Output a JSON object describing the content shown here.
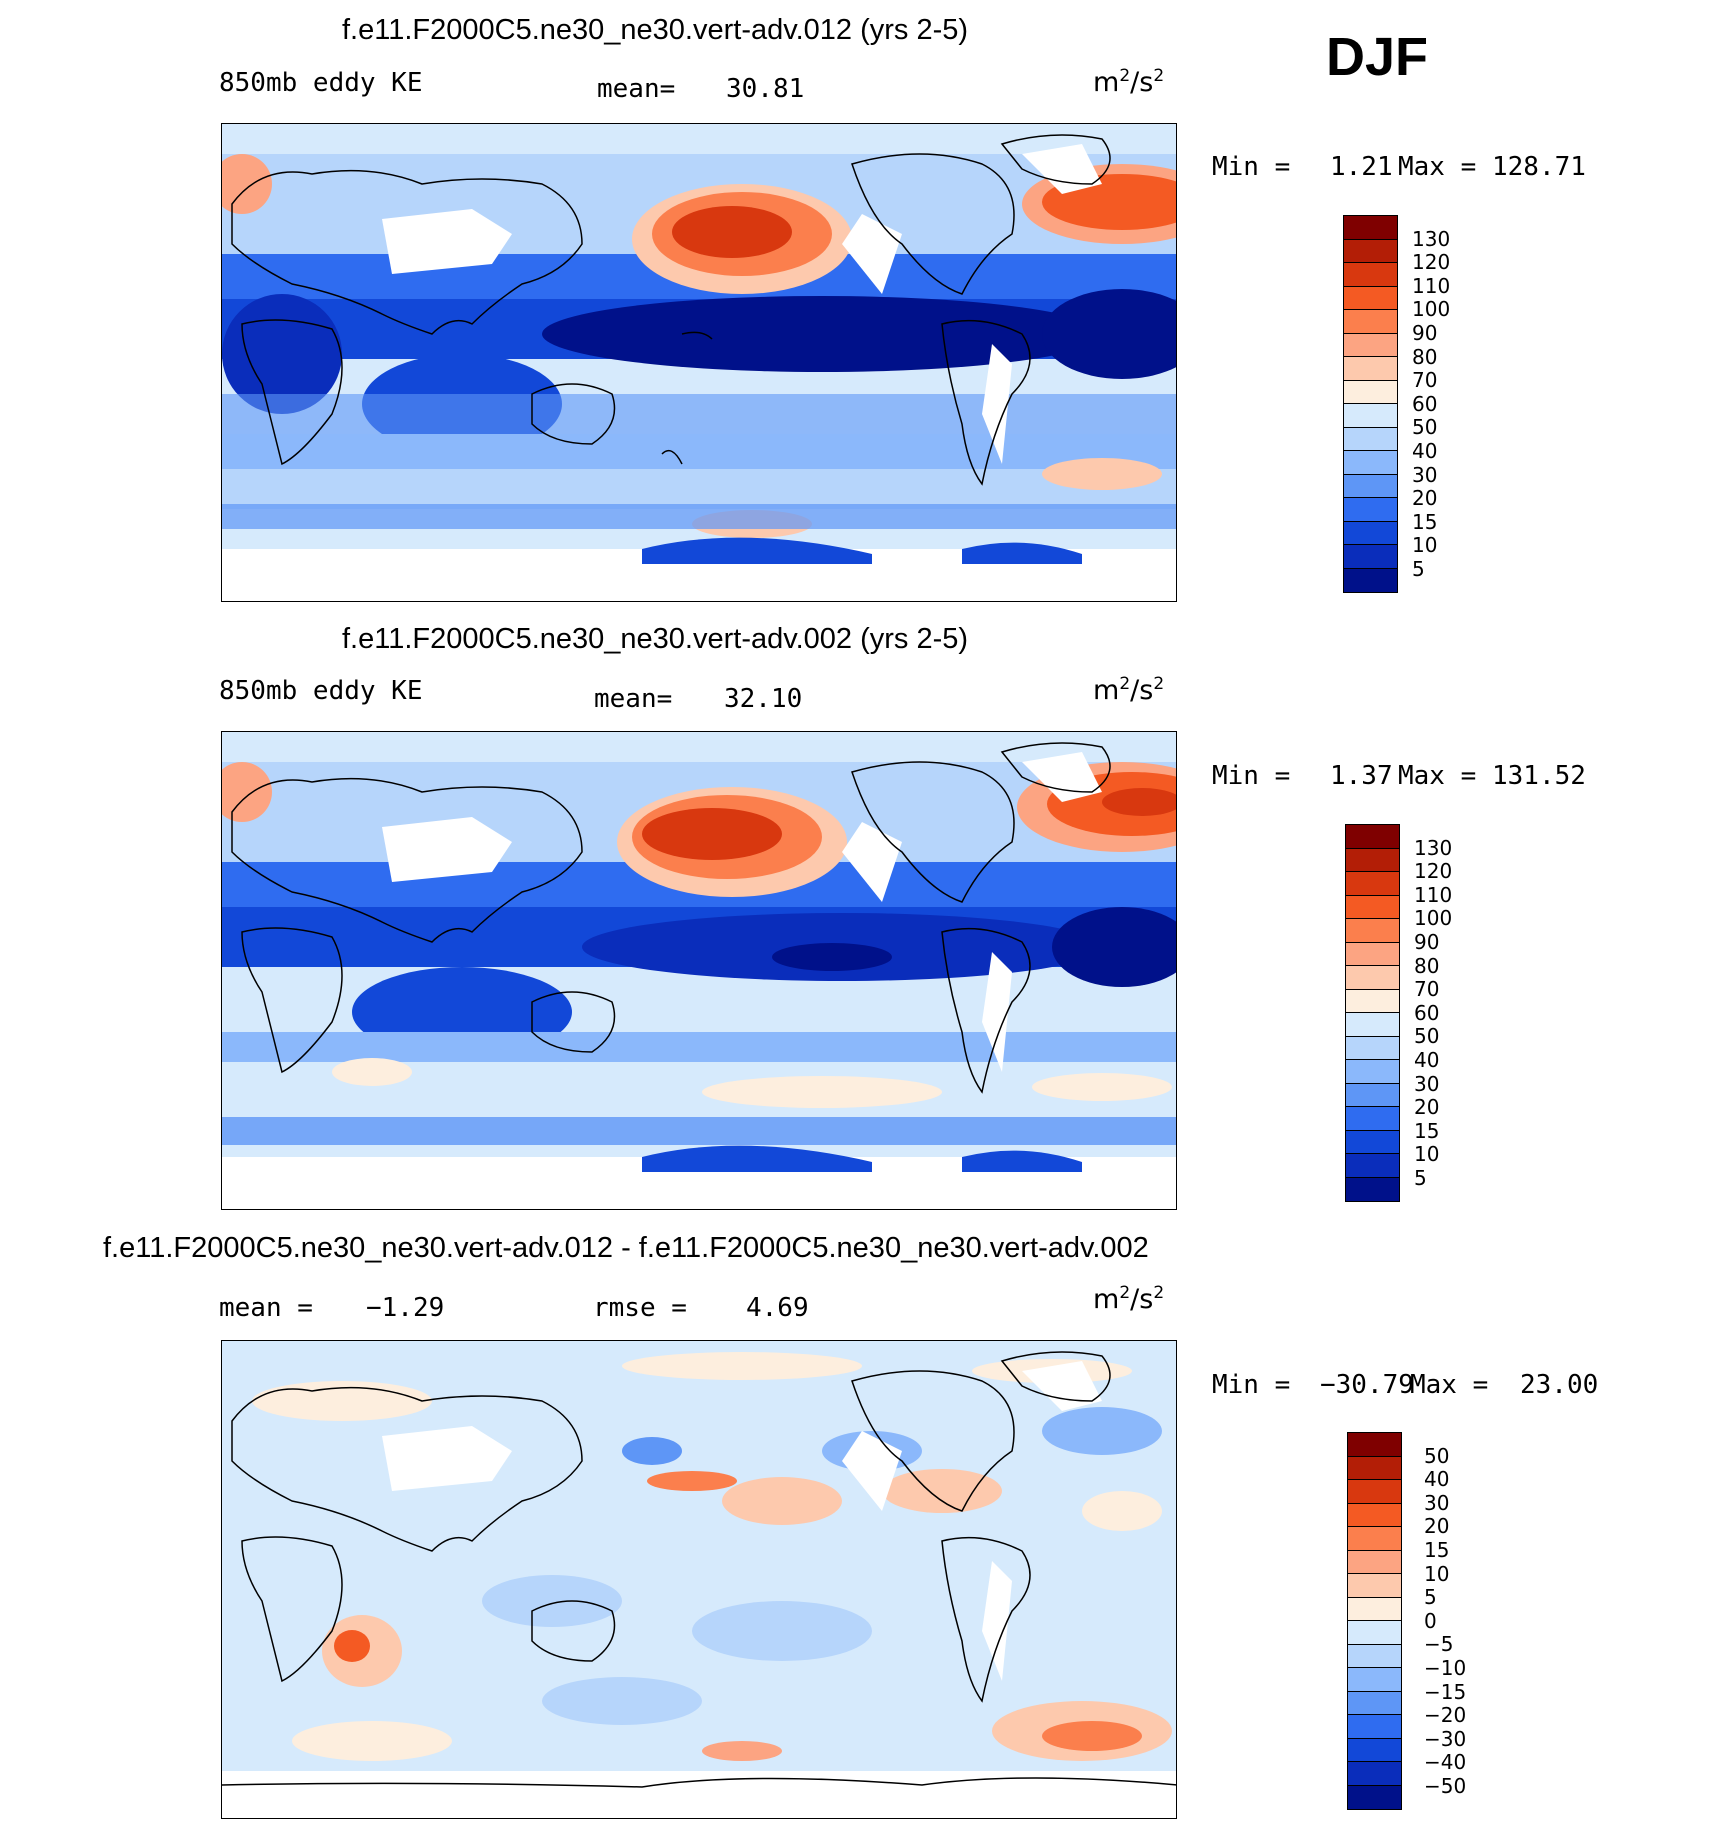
{
  "season": "DJF",
  "panels": [
    {
      "id": "p1",
      "title": "f.e11.F2000C5.ne30_ne30.vert-adv.012 (yrs 2-5)",
      "field_label": "850mb eddy KE",
      "stat_label": "mean=",
      "stat_value": "30.81",
      "units": "m²/s²",
      "min_label": "Min =",
      "min_value": "1.21",
      "max_label": "Max =",
      "max_value": "128.71",
      "colorbar_labels": [
        "130",
        "120",
        "110",
        "100",
        "90",
        "80",
        "70",
        "60",
        "50",
        "40",
        "30",
        "20",
        "15",
        "10",
        "5"
      ]
    },
    {
      "id": "p2",
      "title": "f.e11.F2000C5.ne30_ne30.vert-adv.002 (yrs 2-5)",
      "field_label": "850mb eddy KE",
      "stat_label": "mean=",
      "stat_value": "32.10",
      "units": "m²/s²",
      "min_label": "Min =",
      "min_value": "1.37",
      "max_label": "Max =",
      "max_value": "131.52",
      "colorbar_labels": [
        "130",
        "120",
        "110",
        "100",
        "90",
        "80",
        "70",
        "60",
        "50",
        "40",
        "30",
        "20",
        "15",
        "10",
        "5"
      ]
    },
    {
      "id": "p3",
      "title": "f.e11.F2000C5.ne30_ne30.vert-adv.012 - f.e11.F2000C5.ne30_ne30.vert-adv.002",
      "stat_label": "mean =",
      "stat_value": "−1.29",
      "rmse_label": "rmse =",
      "rmse_value": "4.69",
      "units": "m²/s²",
      "min_label": "Min =",
      "min_value": "−30.79",
      "max_label": "Max =",
      "max_value": "23.00",
      "colorbar_labels": [
        "50",
        "40",
        "30",
        "20",
        "15",
        "10",
        "5",
        "0",
        "−5",
        "−10",
        "−15",
        "−20",
        "−30",
        "−40",
        "−50"
      ]
    }
  ],
  "colors": {
    "ke_scale": [
      "#7f0000",
      "#b31e06",
      "#d8380f",
      "#f45a23",
      "#fb7f4d",
      "#fca482",
      "#fdc9ad",
      "#fdeede",
      "#d6eafc",
      "#b6d5fb",
      "#8bb8fb",
      "#5e96f6",
      "#2f6cf0",
      "#1248d8",
      "#0a2dbb",
      "#00118a"
    ],
    "diff_scale": [
      "#7f0000",
      "#b31e06",
      "#d8380f",
      "#f45a23",
      "#fb7f4d",
      "#fca482",
      "#fdc9ad",
      "#fdeede",
      "#d6eafc",
      "#b6d5fb",
      "#8bb8fb",
      "#5e96f6",
      "#2f6cf0",
      "#1248d8",
      "#0a2dbb",
      "#00118a"
    ]
  }
}
